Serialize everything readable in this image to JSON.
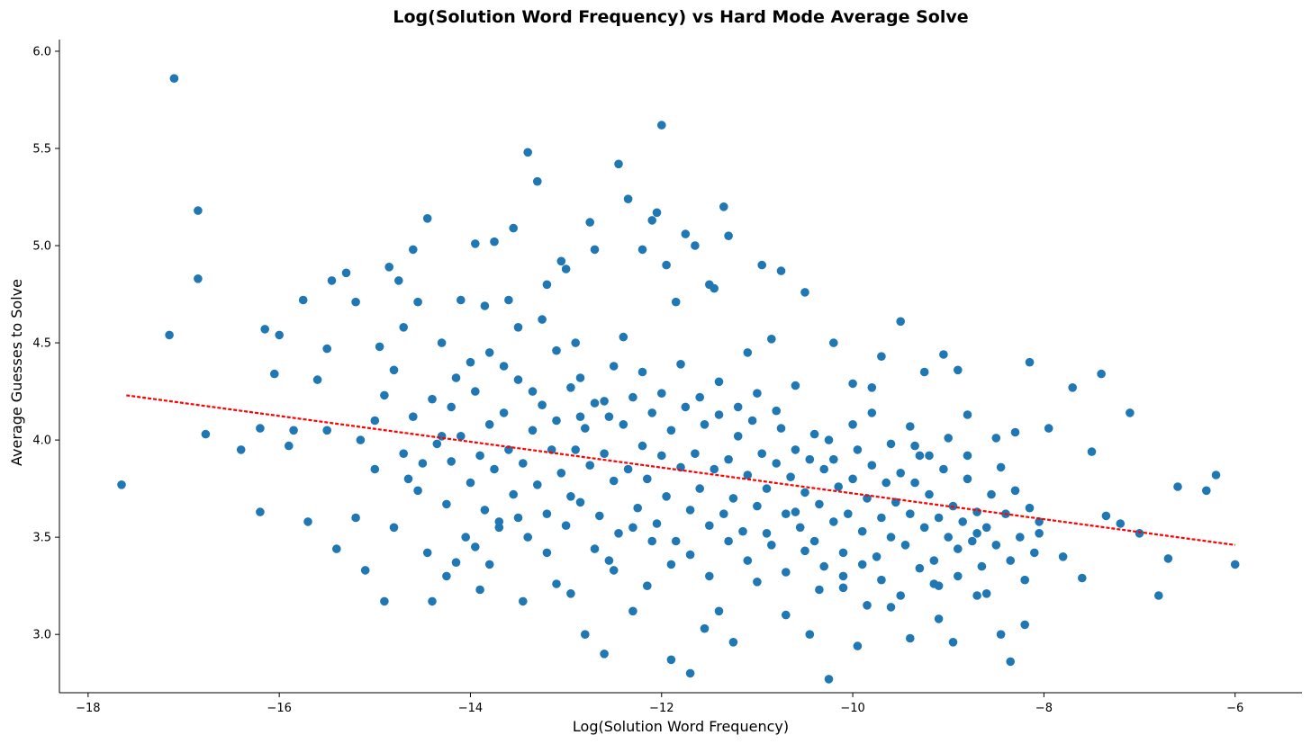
{
  "chart_data": {
    "type": "scatter",
    "title": "Log(Solution Word Frequency) vs Hard Mode Average Solve",
    "xlabel": "Log(Solution Word Frequency)",
    "ylabel": "Average Guesses to Solve",
    "xlim": [
      -18.3,
      -5.3
    ],
    "ylim": [
      2.7,
      6.06
    ],
    "xticks": [
      -18,
      -16,
      -14,
      -12,
      -10,
      -8,
      -6
    ],
    "xtick_labels": [
      "−18",
      "−16",
      "−14",
      "−12",
      "−10",
      "−8",
      "−6"
    ],
    "yticks": [
      3.0,
      3.5,
      4.0,
      4.5,
      5.0,
      5.5,
      6.0
    ],
    "ytick_labels": [
      "3.0",
      "3.5",
      "4.0",
      "4.5",
      "5.0",
      "5.5",
      "6.0"
    ],
    "grid": false,
    "marker_color": "#1f77b4",
    "trend_color": "#ff0000",
    "trendline": {
      "x": [
        -17.6,
        -6.0
      ],
      "y": [
        4.23,
        3.46
      ]
    },
    "points": [
      [
        -17.65,
        3.77
      ],
      [
        -17.1,
        5.86
      ],
      [
        -17.15,
        4.54
      ],
      [
        -16.85,
        5.18
      ],
      [
        -16.85,
        4.83
      ],
      [
        -16.77,
        4.03
      ],
      [
        -16.4,
        3.95
      ],
      [
        -16.2,
        4.06
      ],
      [
        -16.2,
        3.63
      ],
      [
        -16.15,
        4.57
      ],
      [
        -16.05,
        4.34
      ],
      [
        -16.0,
        4.54
      ],
      [
        -15.85,
        4.05
      ],
      [
        -15.75,
        4.72
      ],
      [
        -15.7,
        3.58
      ],
      [
        -15.6,
        4.31
      ],
      [
        -15.5,
        4.47
      ],
      [
        -15.45,
        4.82
      ],
      [
        -15.4,
        3.44
      ],
      [
        -15.3,
        4.86
      ],
      [
        -15.2,
        4.71
      ],
      [
        -15.15,
        4.0
      ],
      [
        -15.1,
        3.33
      ],
      [
        -14.95,
        4.48
      ],
      [
        -14.9,
        3.17
      ],
      [
        -14.85,
        4.89
      ],
      [
        -14.75,
        4.82
      ],
      [
        -14.7,
        4.58
      ],
      [
        -14.6,
        4.98
      ],
      [
        -14.55,
        4.71
      ],
      [
        -14.5,
        3.88
      ],
      [
        -14.45,
        5.14
      ],
      [
        -14.4,
        3.17
      ],
      [
        -14.3,
        4.5
      ],
      [
        -14.2,
        4.17
      ],
      [
        -14.15,
        3.37
      ],
      [
        -14.1,
        4.72
      ],
      [
        -14.0,
        4.4
      ],
      [
        -13.95,
        5.01
      ],
      [
        -13.9,
        3.23
      ],
      [
        -13.85,
        4.69
      ],
      [
        -13.8,
        4.45
      ],
      [
        -13.75,
        5.02
      ],
      [
        -13.7,
        3.55
      ],
      [
        -13.6,
        4.72
      ],
      [
        -13.55,
        5.09
      ],
      [
        -13.5,
        4.58
      ],
      [
        -13.45,
        3.17
      ],
      [
        -13.4,
        5.48
      ],
      [
        -13.3,
        5.33
      ],
      [
        -13.25,
        4.62
      ],
      [
        -13.2,
        4.8
      ],
      [
        -13.1,
        3.26
      ],
      [
        -13.05,
        4.92
      ],
      [
        -13.0,
        4.88
      ],
      [
        -12.95,
        3.21
      ],
      [
        -12.9,
        4.5
      ],
      [
        -12.85,
        4.12
      ],
      [
        -12.8,
        3.0
      ],
      [
        -12.75,
        5.12
      ],
      [
        -12.7,
        4.98
      ],
      [
        -12.6,
        2.9
      ],
      [
        -12.55,
        3.38
      ],
      [
        -12.5,
        4.38
      ],
      [
        -12.45,
        5.42
      ],
      [
        -12.35,
        5.24
      ],
      [
        -12.3,
        3.12
      ],
      [
        -12.2,
        4.98
      ],
      [
        -12.15,
        3.25
      ],
      [
        -12.1,
        5.13
      ],
      [
        -12.05,
        5.17
      ],
      [
        -12.0,
        5.62
      ],
      [
        -11.95,
        4.9
      ],
      [
        -11.9,
        2.87
      ],
      [
        -11.85,
        4.71
      ],
      [
        -11.75,
        5.06
      ],
      [
        -11.7,
        2.8
      ],
      [
        -11.65,
        5.0
      ],
      [
        -11.55,
        3.03
      ],
      [
        -11.5,
        4.8
      ],
      [
        -11.45,
        4.78
      ],
      [
        -11.4,
        3.12
      ],
      [
        -11.35,
        5.2
      ],
      [
        -11.3,
        5.05
      ],
      [
        -11.25,
        2.96
      ],
      [
        -11.1,
        4.45
      ],
      [
        -11.0,
        3.27
      ],
      [
        -10.95,
        4.9
      ],
      [
        -10.85,
        4.52
      ],
      [
        -10.75,
        4.87
      ],
      [
        -10.7,
        3.1
      ],
      [
        -10.6,
        3.63
      ],
      [
        -10.5,
        4.76
      ],
      [
        -10.45,
        3.0
      ],
      [
        -10.35,
        3.23
      ],
      [
        -10.25,
        2.77
      ],
      [
        -10.2,
        4.5
      ],
      [
        -10.1,
        3.3
      ],
      [
        -10.0,
        4.29
      ],
      [
        -9.95,
        2.94
      ],
      [
        -9.85,
        3.15
      ],
      [
        -9.8,
        4.27
      ],
      [
        -9.7,
        4.43
      ],
      [
        -9.6,
        3.14
      ],
      [
        -9.5,
        4.61
      ],
      [
        -9.4,
        2.98
      ],
      [
        -9.35,
        3.97
      ],
      [
        -9.25,
        4.35
      ],
      [
        -9.15,
        3.26
      ],
      [
        -9.1,
        3.08
      ],
      [
        -9.05,
        4.44
      ],
      [
        -8.95,
        2.96
      ],
      [
        -8.9,
        4.36
      ],
      [
        -8.8,
        4.13
      ],
      [
        -8.7,
        3.52
      ],
      [
        -8.6,
        3.21
      ],
      [
        -8.5,
        4.01
      ],
      [
        -8.45,
        3.0
      ],
      [
        -8.35,
        2.86
      ],
      [
        -8.3,
        4.04
      ],
      [
        -8.2,
        3.05
      ],
      [
        -8.15,
        4.4
      ],
      [
        -8.05,
        3.52
      ],
      [
        -7.95,
        4.06
      ],
      [
        -7.8,
        3.4
      ],
      [
        -7.7,
        4.27
      ],
      [
        -7.6,
        3.29
      ],
      [
        -7.5,
        3.94
      ],
      [
        -7.4,
        4.34
      ],
      [
        -7.35,
        3.61
      ],
      [
        -7.2,
        3.57
      ],
      [
        -7.1,
        4.14
      ],
      [
        -7.0,
        3.52
      ],
      [
        -6.8,
        3.2
      ],
      [
        -6.7,
        3.39
      ],
      [
        -6.6,
        3.76
      ],
      [
        -6.3,
        3.74
      ],
      [
        -6.2,
        3.82
      ],
      [
        -6.0,
        3.36
      ],
      [
        -15.9,
        3.97
      ],
      [
        -15.5,
        4.05
      ],
      [
        -15.2,
        3.6
      ],
      [
        -15.0,
        3.85
      ],
      [
        -14.9,
        4.23
      ],
      [
        -14.8,
        3.55
      ],
      [
        -14.7,
        3.93
      ],
      [
        -14.6,
        4.12
      ],
      [
        -14.55,
        3.74
      ],
      [
        -14.45,
        3.42
      ],
      [
        -14.35,
        3.98
      ],
      [
        -14.3,
        4.02
      ],
      [
        -14.25,
        3.67
      ],
      [
        -14.2,
        3.89
      ],
      [
        -14.1,
        4.02
      ],
      [
        -14.05,
        3.5
      ],
      [
        -14.0,
        3.78
      ],
      [
        -13.95,
        4.25
      ],
      [
        -13.9,
        3.92
      ],
      [
        -13.85,
        3.64
      ],
      [
        -13.8,
        4.08
      ],
      [
        -13.75,
        3.85
      ],
      [
        -13.7,
        3.58
      ],
      [
        -13.65,
        4.14
      ],
      [
        -13.6,
        3.95
      ],
      [
        -13.55,
        3.72
      ],
      [
        -13.5,
        4.31
      ],
      [
        -13.45,
        3.88
      ],
      [
        -13.4,
        3.5
      ],
      [
        -13.35,
        4.05
      ],
      [
        -13.3,
        3.77
      ],
      [
        -13.25,
        4.18
      ],
      [
        -13.2,
        3.62
      ],
      [
        -13.15,
        3.95
      ],
      [
        -13.1,
        4.1
      ],
      [
        -13.05,
        3.83
      ],
      [
        -13.0,
        3.56
      ],
      [
        -12.95,
        4.27
      ],
      [
        -12.9,
        3.95
      ],
      [
        -12.85,
        3.68
      ],
      [
        -12.8,
        4.06
      ],
      [
        -12.75,
        3.87
      ],
      [
        -12.7,
        4.19
      ],
      [
        -12.65,
        3.61
      ],
      [
        -12.6,
        3.93
      ],
      [
        -12.55,
        4.12
      ],
      [
        -12.5,
        3.79
      ],
      [
        -12.45,
        3.52
      ],
      [
        -12.4,
        4.08
      ],
      [
        -12.35,
        3.85
      ],
      [
        -12.3,
        4.22
      ],
      [
        -12.25,
        3.65
      ],
      [
        -12.2,
        3.97
      ],
      [
        -12.15,
        3.8
      ],
      [
        -12.1,
        4.14
      ],
      [
        -12.05,
        3.57
      ],
      [
        -12.0,
        3.92
      ],
      [
        -11.95,
        3.71
      ],
      [
        -11.9,
        4.05
      ],
      [
        -11.85,
        3.48
      ],
      [
        -11.8,
        3.86
      ],
      [
        -11.75,
        4.17
      ],
      [
        -11.7,
        3.64
      ],
      [
        -11.65,
        3.93
      ],
      [
        -11.6,
        3.75
      ],
      [
        -11.55,
        4.08
      ],
      [
        -11.5,
        3.56
      ],
      [
        -11.45,
        3.85
      ],
      [
        -11.4,
        4.13
      ],
      [
        -11.35,
        3.62
      ],
      [
        -11.3,
        3.9
      ],
      [
        -11.25,
        3.7
      ],
      [
        -11.2,
        4.02
      ],
      [
        -11.15,
        3.53
      ],
      [
        -11.1,
        3.82
      ],
      [
        -11.05,
        4.1
      ],
      [
        -11.0,
        3.66
      ],
      [
        -10.95,
        3.93
      ],
      [
        -10.9,
        3.75
      ],
      [
        -10.85,
        3.46
      ],
      [
        -10.8,
        3.88
      ],
      [
        -10.75,
        4.06
      ],
      [
        -10.7,
        3.62
      ],
      [
        -10.65,
        3.81
      ],
      [
        -10.6,
        3.95
      ],
      [
        -10.55,
        3.55
      ],
      [
        -10.5,
        3.73
      ],
      [
        -10.45,
        3.9
      ],
      [
        -10.4,
        3.48
      ],
      [
        -10.35,
        3.67
      ],
      [
        -10.3,
        3.85
      ],
      [
        -10.25,
        4.0
      ],
      [
        -10.2,
        3.58
      ],
      [
        -10.15,
        3.76
      ],
      [
        -10.1,
        3.42
      ],
      [
        -10.05,
        3.62
      ],
      [
        -10.0,
        3.8
      ],
      [
        -9.95,
        3.95
      ],
      [
        -9.9,
        3.53
      ],
      [
        -9.85,
        3.7
      ],
      [
        -9.8,
        3.87
      ],
      [
        -9.75,
        3.4
      ],
      [
        -9.7,
        3.6
      ],
      [
        -9.65,
        3.78
      ],
      [
        -9.6,
        3.5
      ],
      [
        -9.55,
        3.68
      ],
      [
        -9.5,
        3.83
      ],
      [
        -9.45,
        3.46
      ],
      [
        -9.4,
        3.62
      ],
      [
        -9.35,
        3.78
      ],
      [
        -9.3,
        3.92
      ],
      [
        -9.25,
        3.55
      ],
      [
        -9.2,
        3.72
      ],
      [
        -9.15,
        3.38
      ],
      [
        -9.1,
        3.6
      ],
      [
        -9.05,
        3.85
      ],
      [
        -9.0,
        3.5
      ],
      [
        -8.95,
        3.66
      ],
      [
        -8.9,
        3.44
      ],
      [
        -8.85,
        3.58
      ],
      [
        -8.8,
        3.8
      ],
      [
        -8.75,
        3.48
      ],
      [
        -8.7,
        3.63
      ],
      [
        -8.65,
        3.35
      ],
      [
        -8.6,
        3.55
      ],
      [
        -8.55,
        3.72
      ],
      [
        -8.5,
        3.46
      ],
      [
        -8.45,
        3.86
      ],
      [
        -8.4,
        3.62
      ],
      [
        -8.35,
        3.38
      ],
      [
        -8.3,
        3.74
      ],
      [
        -8.25,
        3.5
      ],
      [
        -8.2,
        3.28
      ],
      [
        -8.15,
        3.65
      ],
      [
        -8.1,
        3.42
      ],
      [
        -8.05,
        3.58
      ],
      [
        -15.0,
        4.1
      ],
      [
        -14.8,
        4.36
      ],
      [
        -14.65,
        3.8
      ],
      [
        -14.4,
        4.21
      ],
      [
        -14.25,
        3.3
      ],
      [
        -14.15,
        4.32
      ],
      [
        -13.95,
        3.45
      ],
      [
        -13.8,
        3.36
      ],
      [
        -13.65,
        4.38
      ],
      [
        -13.5,
        3.6
      ],
      [
        -13.35,
        4.25
      ],
      [
        -13.2,
        3.42
      ],
      [
        -13.1,
        4.46
      ],
      [
        -12.95,
        3.71
      ],
      [
        -12.85,
        4.32
      ],
      [
        -12.7,
        3.44
      ],
      [
        -12.6,
        4.2
      ],
      [
        -12.5,
        3.33
      ],
      [
        -12.4,
        4.53
      ],
      [
        -12.3,
        3.55
      ],
      [
        -12.2,
        4.35
      ],
      [
        -12.1,
        3.48
      ],
      [
        -12.0,
        4.24
      ],
      [
        -11.9,
        3.36
      ],
      [
        -11.8,
        4.39
      ],
      [
        -11.7,
        3.41
      ],
      [
        -11.6,
        4.22
      ],
      [
        -11.5,
        3.3
      ],
      [
        -11.4,
        4.3
      ],
      [
        -11.3,
        3.48
      ],
      [
        -11.2,
        4.17
      ],
      [
        -11.1,
        3.38
      ],
      [
        -11.0,
        4.24
      ],
      [
        -10.9,
        3.52
      ],
      [
        -10.8,
        4.15
      ],
      [
        -10.7,
        3.32
      ],
      [
        -10.6,
        4.28
      ],
      [
        -10.5,
        3.43
      ],
      [
        -10.4,
        4.03
      ],
      [
        -10.3,
        3.35
      ],
      [
        -10.2,
        3.9
      ],
      [
        -10.1,
        3.24
      ],
      [
        -10.0,
        4.08
      ],
      [
        -9.9,
        3.36
      ],
      [
        -9.8,
        4.14
      ],
      [
        -9.7,
        3.28
      ],
      [
        -9.6,
        3.98
      ],
      [
        -9.5,
        3.2
      ],
      [
        -9.4,
        4.07
      ],
      [
        -9.3,
        3.34
      ],
      [
        -9.2,
        3.92
      ],
      [
        -9.1,
        3.25
      ],
      [
        -9.0,
        4.01
      ],
      [
        -8.9,
        3.3
      ],
      [
        -8.8,
        3.92
      ],
      [
        -8.7,
        3.2
      ]
    ]
  }
}
